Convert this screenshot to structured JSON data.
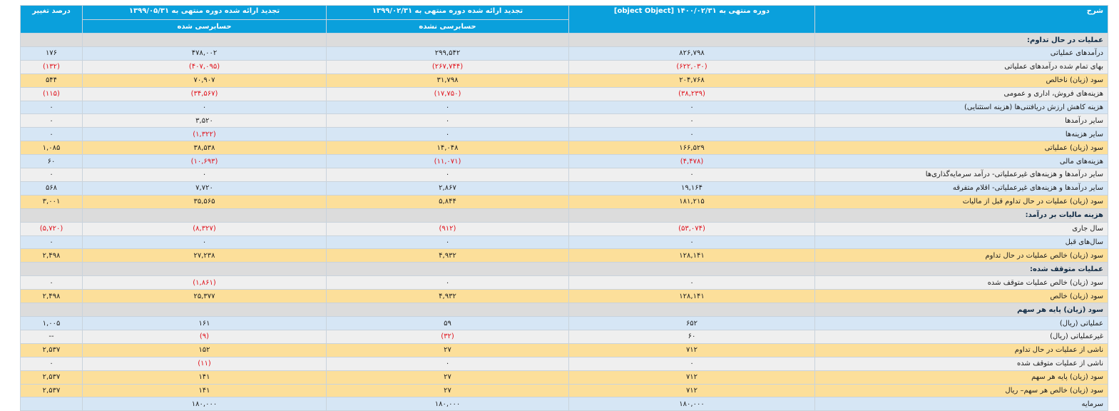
{
  "header": {
    "col_desc": "شرح",
    "col_p1": "دوره منتهی به ۱۴۰۰/۰۲/۳۱ [object Object]",
    "col_p2": "تجدید ارائه شده دوره منتهی به ۱۳۹۹/۰۲/۳۱",
    "col_p3": "تجدید ارائه شده دوره منتهی به ۱۳۹۹/۰۵/۳۱",
    "col_change": "درصد تغییر",
    "sub_p1": "",
    "sub_p2": "حسابرسی نشده",
    "sub_p3": "حسابرسی شده"
  },
  "rows": [
    {
      "type": "section",
      "desc": "عملیات در حال تداوم:"
    },
    {
      "type": "blue",
      "desc": "درآمدهای عملیاتی",
      "v1": "۸۲۶,۷۹۸",
      "v2": "۲۹۹,۵۴۲",
      "v3": "۴۷۸,۰۰۲",
      "v4": "۱۷۶"
    },
    {
      "type": "gray",
      "desc": "بهای تمام شده درآمدهای عملیاتی",
      "v1": "(۶۲۲,۰۳۰)",
      "v2": "(۲۶۷,۷۴۴)",
      "v3": "(۴۰۷,۰۹۵)",
      "v4": "(۱۳۲)"
    },
    {
      "type": "yellow",
      "desc": "سود (زیان) ناخالص",
      "v1": "۲۰۴,۷۶۸",
      "v2": "۳۱,۷۹۸",
      "v3": "۷۰,۹۰۷",
      "v4": "۵۴۴"
    },
    {
      "type": "gray",
      "desc": "هزینه‌های فروش، اداری و عمومی",
      "v1": "(۳۸,۲۳۹)",
      "v2": "(۱۷,۷۵۰)",
      "v3": "(۳۴,۵۶۷)",
      "v4": "(۱۱۵)"
    },
    {
      "type": "blue",
      "desc": "هزینه کاهش ارزش دریافتنی‌ها (هزینه استثنایی)",
      "v1": "۰",
      "v2": "۰",
      "v3": "۰",
      "v4": "۰"
    },
    {
      "type": "gray",
      "desc": "سایر درآمدها",
      "v1": "۰",
      "v2": "۰",
      "v3": "۳,۵۲۰",
      "v4": "۰"
    },
    {
      "type": "blue",
      "desc": "سایر هزینه‌ها",
      "v1": "۰",
      "v2": "۰",
      "v3": "(۱,۳۲۲)",
      "v4": "۰"
    },
    {
      "type": "yellow",
      "desc": "سود (زیان) عملیاتی",
      "v1": "۱۶۶,۵۲۹",
      "v2": "۱۴,۰۴۸",
      "v3": "۳۸,۵۳۸",
      "v4": "۱,۰۸۵"
    },
    {
      "type": "blue",
      "desc": "هزینه‌های مالی",
      "v1": "(۴,۴۷۸)",
      "v2": "(۱۱,۰۷۱)",
      "v3": "(۱۰,۶۹۳)",
      "v4": "۶۰"
    },
    {
      "type": "gray",
      "desc": "سایر درآمدها و هزینه‌های غیرعملیاتی- درآمد سرمایه‌گذاری‌ها",
      "v1": "۰",
      "v2": "۰",
      "v3": "۰",
      "v4": "۰"
    },
    {
      "type": "blue",
      "desc": "سایر درآمدها و هزینه‌های غیرعملیاتی- اقلام متفرقه",
      "v1": "۱۹,۱۶۴",
      "v2": "۲,۸۶۷",
      "v3": "۷,۷۲۰",
      "v4": "۵۶۸"
    },
    {
      "type": "yellow",
      "desc": "سود (زیان) عملیات در حال تداوم قبل از مالیات",
      "v1": "۱۸۱,۲۱۵",
      "v2": "۵,۸۴۴",
      "v3": "۳۵,۵۶۵",
      "v4": "۳,۰۰۱"
    },
    {
      "type": "section",
      "desc": "هزینه مالیات بر درآمد:"
    },
    {
      "type": "gray",
      "desc": "سال جاری",
      "v1": "(۵۳,۰۷۴)",
      "v2": "(۹۱۲)",
      "v3": "(۸,۳۲۷)",
      "v4": "(۵,۷۲۰)"
    },
    {
      "type": "blue",
      "desc": "سال‌های قبل",
      "v1": "۰",
      "v2": "۰",
      "v3": "۰",
      "v4": "۰"
    },
    {
      "type": "yellow",
      "desc": "سود (زیان) خالص عملیات در حال تداوم",
      "v1": "۱۲۸,۱۴۱",
      "v2": "۴,۹۳۲",
      "v3": "۲۷,۲۳۸",
      "v4": "۲,۴۹۸"
    },
    {
      "type": "section",
      "desc": "عملیات متوقف شده:"
    },
    {
      "type": "gray",
      "desc": "سود (زیان) خالص عملیات متوقف شده",
      "v1": "۰",
      "v2": "۰",
      "v3": "(۱,۸۶۱)",
      "v4": "۰"
    },
    {
      "type": "yellow",
      "desc": "سود (زیان) خالص",
      "v1": "۱۲۸,۱۴۱",
      "v2": "۴,۹۳۲",
      "v3": "۲۵,۳۷۷",
      "v4": "۲,۴۹۸"
    },
    {
      "type": "section",
      "desc": "سود (زیان) پایه هر سهم"
    },
    {
      "type": "blue",
      "desc": "عملیاتی (ریال)",
      "v1": "۶۵۲",
      "v2": "۵۹",
      "v3": "۱۶۱",
      "v4": "۱,۰۰۵"
    },
    {
      "type": "gray",
      "desc": "غیرعملیاتی (ریال)",
      "v1": "۶۰",
      "v2": "(۳۲)",
      "v3": "(۹)",
      "v4": "--"
    },
    {
      "type": "yellow",
      "desc": "ناشی از عملیات در حال تداوم",
      "v1": "۷۱۲",
      "v2": "۲۷",
      "v3": "۱۵۲",
      "v4": "۲,۵۳۷"
    },
    {
      "type": "gray",
      "desc": "ناشی از عملیات متوقف شده",
      "v1": "۰",
      "v2": "۰",
      "v3": "(۱۱)",
      "v4": "۰"
    },
    {
      "type": "yellow",
      "desc": "سود (زیان) پایه هر سهم",
      "v1": "۷۱۲",
      "v2": "۲۷",
      "v3": "۱۴۱",
      "v4": "۲,۵۳۷"
    },
    {
      "type": "yellow",
      "desc": "سود (زیان) خالص هر سهم– ریال",
      "v1": "۷۱۲",
      "v2": "۲۷",
      "v3": "۱۴۱",
      "v4": "۲,۵۳۷"
    },
    {
      "type": "blue",
      "desc": "سرمایه",
      "v1": "۱۸۰,۰۰۰",
      "v2": "۱۸۰,۰۰۰",
      "v3": "۱۸۰,۰۰۰",
      "v4": ""
    }
  ]
}
